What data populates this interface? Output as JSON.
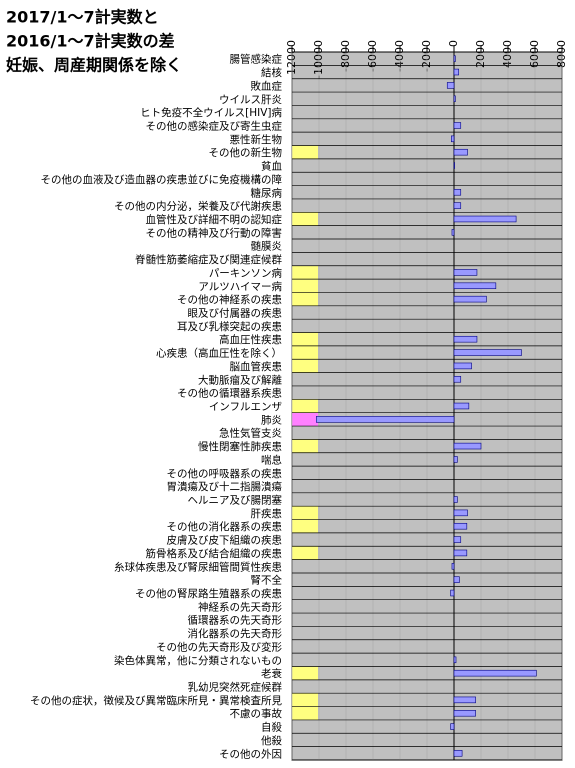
{
  "chart_data": {
    "type": "bar",
    "orientation": "horizontal",
    "title": [
      "2017/1～7計実数と",
      "2016/1～7計実数の差",
      "妊娠、周産期関係を除く"
    ],
    "categories": [
      "腸管感染症",
      "結核",
      "敗血症",
      "ウイルス肝炎",
      "ヒト免疫不全ウイルス[HIV]病",
      "その他の感染症及び寄生虫症",
      "悪性新生物",
      "その他の新生物",
      "貧血",
      "その他の血液及び造血器の疾患並びに免疫機構の障",
      "糖尿病",
      "その他の内分泌，栄養及び代謝疾患",
      "血管性及び詳細不明の認知症",
      "その他の精神及び行動の障害",
      "髄膜炎",
      "脊髄性筋萎縮症及び関連症候群",
      "パーキンソン病",
      "アルツハイマー病",
      "その他の神経系の疾患",
      "眼及び付属器の疾患",
      "耳及び乳様突起の疾患",
      "高血圧性疾患",
      "心疾患（高血圧性を除く）",
      "脳血管疾患",
      "大動脈瘤及び解離",
      "その他の循環器系疾患",
      "インフルエンザ",
      "肺炎",
      "急性気管支炎",
      "慢性閉塞性肺疾患",
      "喘息",
      "その他の呼吸器系の疾患",
      "胃潰瘍及び十二指腸潰瘍",
      "ヘルニア及び腸閉塞",
      "肝疾患",
      "その他の消化器系の疾患",
      "皮膚及び皮下組織の疾患",
      "筋骨格系及び結合組織の疾患",
      "糸球体疾患及び腎尿細管間質性疾患",
      "腎不全",
      "その他の腎尿路生殖器系の疾患",
      "神経系の先天奇形",
      "循環器系の先天奇形",
      "消化器系の先天奇形",
      "その他の先天奇形及び変形",
      "染色体異常，他に分類されないもの",
      "老衰",
      "乳幼児突然死症候群",
      "その他の症状，徴候及び異常臨床所見・異常検査所見",
      "不慮の事故",
      "自殺",
      "他殺",
      "その他の外因"
    ],
    "values": [
      100,
      350,
      -500,
      100,
      0,
      500,
      -200,
      1000,
      50,
      0,
      500,
      500,
      4600,
      -150,
      0,
      0,
      1700,
      3100,
      2400,
      0,
      0,
      1700,
      5000,
      1300,
      500,
      0,
      1100,
      -10200,
      0,
      2000,
      250,
      0,
      0,
      250,
      1000,
      950,
      500,
      950,
      -150,
      400,
      -250,
      0,
      0,
      0,
      0,
      150,
      6100,
      0,
      1600,
      1600,
      -250,
      0,
      600
    ],
    "highlight_colors": [
      null,
      null,
      null,
      null,
      null,
      null,
      null,
      "#ffff80",
      null,
      null,
      null,
      null,
      "#ffff80",
      null,
      null,
      null,
      "#ffff80",
      "#ffff80",
      "#ffff80",
      null,
      null,
      "#ffff80",
      "#ffff80",
      "#ffff80",
      null,
      null,
      "#ffff80",
      "#ff80ff",
      null,
      "#ffff80",
      null,
      null,
      null,
      null,
      "#ffff80",
      "#ffff80",
      null,
      "#ffff80",
      null,
      null,
      null,
      null,
      null,
      null,
      null,
      null,
      "#ffff80",
      null,
      "#ffff80",
      "#ffff80",
      null,
      null,
      null
    ],
    "color": "#9999ff",
    "plot_background": "#c0c0c0",
    "xlim": [
      -12000,
      8000
    ],
    "xticks": [
      -12000,
      -10000,
      -8000,
      -6000,
      -4000,
      -2000,
      0,
      2000,
      4000,
      6000,
      8000
    ],
    "grid": true
  }
}
